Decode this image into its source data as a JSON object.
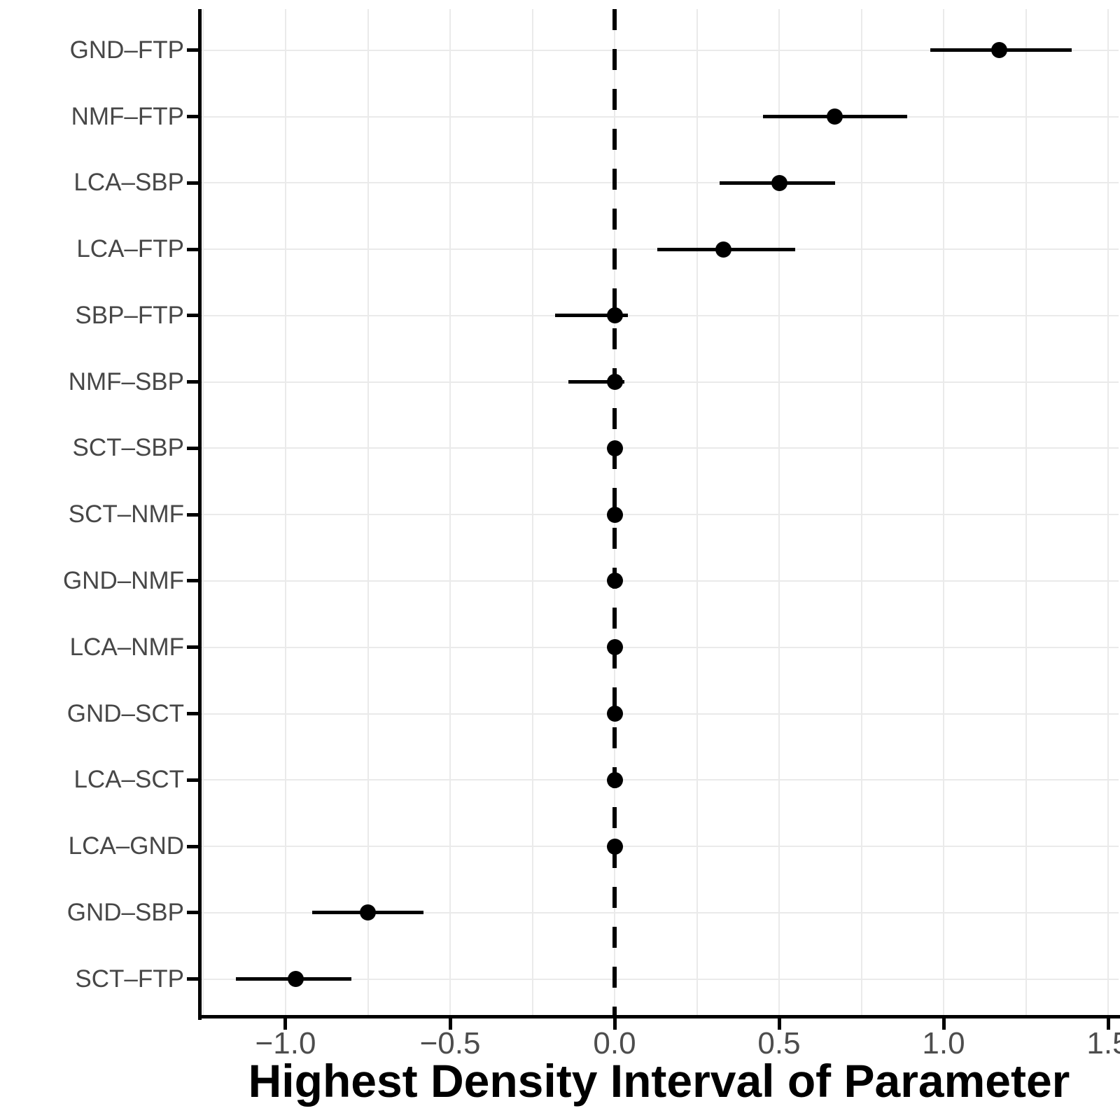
{
  "chart_data": {
    "type": "scatter",
    "subtype": "forest-interval-plot",
    "orientation": "horizontal",
    "title": "",
    "xlabel": "Highest Density Interval of Parameter",
    "ylabel": "",
    "xlim": [
      -1.2617,
      1.5319
    ],
    "grid": "on",
    "legend": "none",
    "x_major_ticks": [
      {
        "value": -1.0,
        "label": "−1.0"
      },
      {
        "value": -0.5,
        "label": "−0.5"
      },
      {
        "value": 0.0,
        "label": "0.0"
      },
      {
        "value": 0.5,
        "label": "0.5"
      },
      {
        "value": 1.0,
        "label": "1.0"
      },
      {
        "value": 1.5,
        "label": "1.5"
      }
    ],
    "x_gridlines": [
      -1.25,
      -1.0,
      -0.75,
      -0.5,
      -0.25,
      0.0,
      0.25,
      0.5,
      0.75,
      1.0,
      1.25,
      1.5
    ],
    "reference_line": {
      "value": 0.0,
      "style": "dashed"
    },
    "colors": {
      "point": "#000000",
      "interval": "#000000",
      "axis": "#000000",
      "gridline": "#eaeaea",
      "tick_label": "#4d4d4d",
      "category_label": "#474747",
      "reference_line": "#000000",
      "axis_title": "#000000",
      "background": "#ffffff"
    },
    "rows": [
      {
        "label": "GND–FTP",
        "point": 1.17,
        "lower": 0.96,
        "upper": 1.39
      },
      {
        "label": "NMF–FTP",
        "point": 0.67,
        "lower": 0.45,
        "upper": 0.89
      },
      {
        "label": "LCA–SBP",
        "point": 0.5,
        "lower": 0.32,
        "upper": 0.67
      },
      {
        "label": "LCA–FTP",
        "point": 0.33,
        "lower": 0.13,
        "upper": 0.55
      },
      {
        "label": "SBP–FTP",
        "point": 0.0,
        "lower": -0.18,
        "upper": 0.04
      },
      {
        "label": "NMF–SBP",
        "point": 0.0,
        "lower": -0.14,
        "upper": 0.03
      },
      {
        "label": "SCT–SBP",
        "point": 0.0,
        "lower": -0.02,
        "upper": 0.02
      },
      {
        "label": "SCT–NMF",
        "point": 0.0,
        "lower": -0.02,
        "upper": 0.02
      },
      {
        "label": "GND–NMF",
        "point": 0.0,
        "lower": -0.02,
        "upper": 0.02
      },
      {
        "label": "LCA–NMF",
        "point": 0.0,
        "lower": -0.02,
        "upper": 0.02
      },
      {
        "label": "GND–SCT",
        "point": 0.0,
        "lower": -0.02,
        "upper": 0.02
      },
      {
        "label": "LCA–SCT",
        "point": 0.0,
        "lower": -0.02,
        "upper": 0.02
      },
      {
        "label": "LCA–GND",
        "point": 0.0,
        "lower": -0.01,
        "upper": 0.01
      },
      {
        "label": "GND–SBP",
        "point": -0.75,
        "lower": -0.92,
        "upper": -0.58
      },
      {
        "label": "SCT–FTP",
        "point": -0.97,
        "lower": -1.15,
        "upper": -0.8
      }
    ]
  }
}
